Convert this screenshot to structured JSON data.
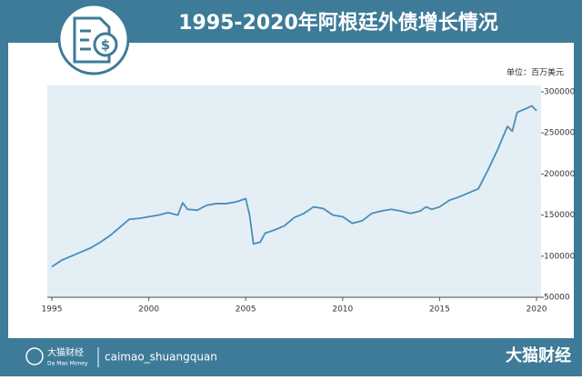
{
  "chart_data": {
    "type": "line",
    "title": "1995-2020年阿根廷外债增长情况",
    "ylabel": "单位：百万美元",
    "x": [
      1995.0,
      1995.5,
      1996.0,
      1996.5,
      1997.0,
      1997.5,
      1998.0,
      1998.5,
      1999.0,
      1999.5,
      2000.0,
      2000.5,
      2001.0,
      2001.5,
      2001.75,
      2002.0,
      2002.5,
      2003.0,
      2003.5,
      2004.0,
      2004.5,
      2005.0,
      2005.2,
      2005.4,
      2005.75,
      2006.0,
      2006.5,
      2007.0,
      2007.5,
      2008.0,
      2008.5,
      2009.0,
      2009.5,
      2010.0,
      2010.5,
      2011.0,
      2011.5,
      2012.0,
      2012.5,
      2013.0,
      2013.5,
      2014.0,
      2014.3,
      2014.6,
      2015.0,
      2015.5,
      2016.0,
      2016.5,
      2017.0,
      2017.5,
      2018.0,
      2018.5,
      2018.75,
      2019.0,
      2019.5,
      2019.75,
      2020.0
    ],
    "values": [
      87000,
      95000,
      100000,
      105000,
      110000,
      117000,
      125000,
      135000,
      145000,
      146000,
      148000,
      150000,
      153000,
      150000,
      165000,
      157000,
      156000,
      162000,
      164000,
      164000,
      166000,
      170000,
      150000,
      115000,
      117000,
      128000,
      132000,
      137000,
      147000,
      152000,
      160000,
      158000,
      150000,
      148000,
      140000,
      143000,
      152000,
      155000,
      157000,
      155000,
      152000,
      155000,
      160000,
      157000,
      160000,
      168000,
      172000,
      177000,
      182000,
      205000,
      230000,
      258000,
      252000,
      275000,
      280000,
      283000,
      277000
    ],
    "color": "#4a8db7",
    "xlim": [
      1995,
      2020
    ],
    "xticks": [
      1995,
      2000,
      2005,
      2010,
      2015,
      2020
    ],
    "ylim": [
      50000,
      300000
    ],
    "yticks": [
      50000,
      100000,
      150000,
      200000,
      250000,
      300000
    ],
    "yaxis_side": "right"
  },
  "footer": {
    "logo": "大猫财经",
    "logo_sub": "Da Mao Money",
    "account": "caimao_shuangquan",
    "brand": "大猫财经"
  }
}
